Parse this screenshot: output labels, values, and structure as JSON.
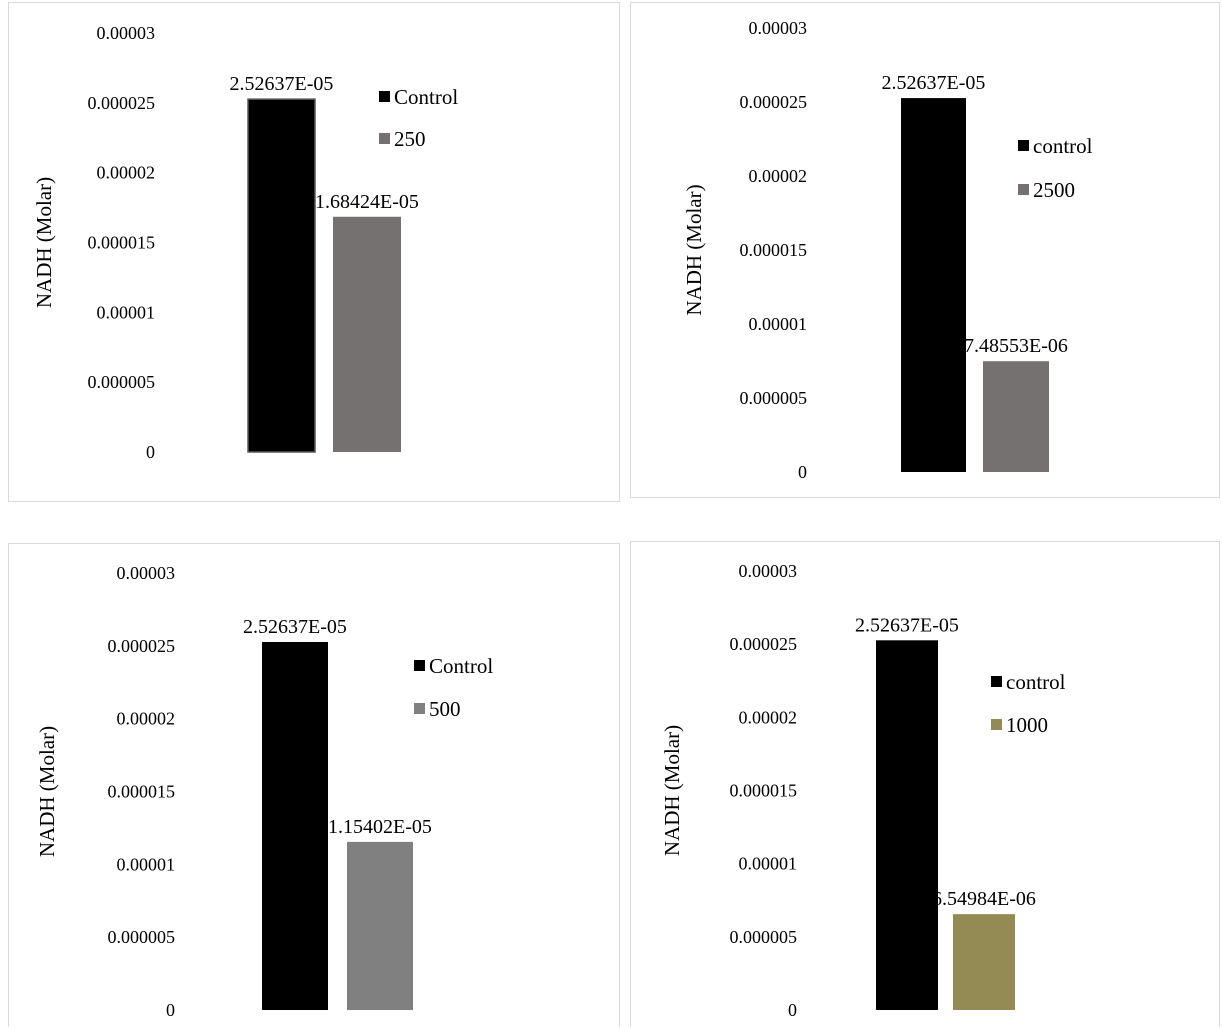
{
  "chart_data": [
    {
      "type": "bar",
      "ylabel": "NADH (Molar)",
      "xlabel": "",
      "ylim": [
        0,
        3e-05
      ],
      "yticks": [
        "0",
        "0.000005",
        "0.00001",
        "0.000015",
        "0.00002",
        "0.000025",
        "0.00003"
      ],
      "grid": false,
      "legend_position": "right",
      "series": [
        {
          "name": "Control",
          "value": 2.52637e-05,
          "label": "2.52637E-05",
          "color": "#000000"
        },
        {
          "name": "250",
          "value": 1.68424e-05,
          "label": "1.68424E-05",
          "color": "#767171"
        }
      ]
    },
    {
      "type": "bar",
      "ylabel": "NADH (Molar)",
      "xlabel": "",
      "ylim": [
        0,
        3e-05
      ],
      "yticks": [
        "0",
        "0.000005",
        "0.00001",
        "0.000015",
        "0.00002",
        "0.000025",
        "0.00003"
      ],
      "grid": false,
      "legend_position": "right",
      "series": [
        {
          "name": "control",
          "value": 2.52637e-05,
          "label": "2.52637E-05",
          "color": "#000000"
        },
        {
          "name": "2500",
          "value": 7.48553e-06,
          "label": "7.48553E-06",
          "color": "#767171"
        }
      ]
    },
    {
      "type": "bar",
      "ylabel": "NADH (Molar)",
      "xlabel": "",
      "ylim": [
        0,
        3e-05
      ],
      "yticks": [
        "0",
        "0.000005",
        "0.00001",
        "0.000015",
        "0.00002",
        "0.000025",
        "0.00003"
      ],
      "grid": false,
      "legend_position": "right",
      "series": [
        {
          "name": "Control",
          "value": 2.52637e-05,
          "label": "2.52637E-05",
          "color": "#000000"
        },
        {
          "name": "500",
          "value": 1.15402e-05,
          "label": "1.15402E-05",
          "color": "#808080"
        }
      ]
    },
    {
      "type": "bar",
      "ylabel": "NADH (Molar)",
      "xlabel": "",
      "ylim": [
        0,
        3e-05
      ],
      "yticks": [
        "0",
        "0.000005",
        "0.00001",
        "0.000015",
        "0.00002",
        "0.000025",
        "0.00003"
      ],
      "grid": false,
      "legend_position": "right",
      "series": [
        {
          "name": "control",
          "value": 2.52637e-05,
          "label": "2.52637E-05",
          "color": "#000000"
        },
        {
          "name": "1000",
          "value": 6.54984e-06,
          "label": "6.54984E-06",
          "color": "#948A54"
        }
      ]
    }
  ]
}
